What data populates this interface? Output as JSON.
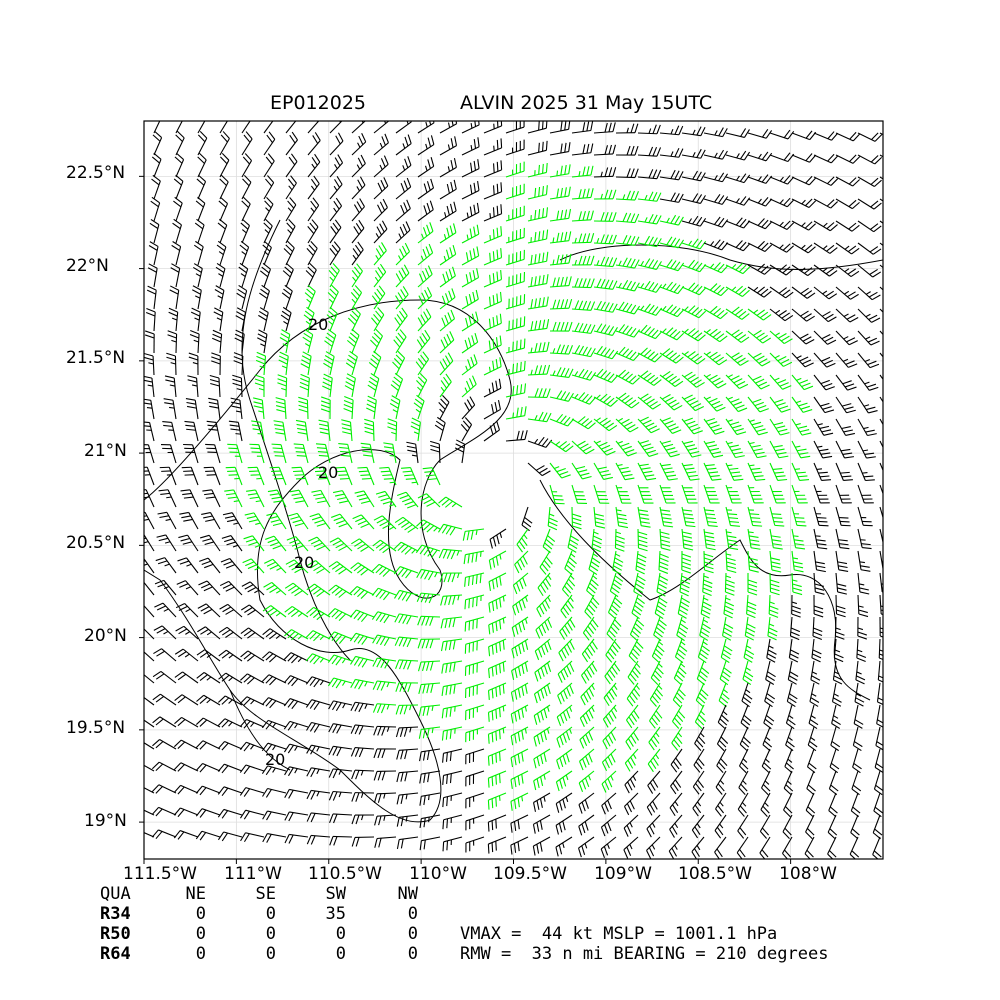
{
  "title": {
    "storm_id": "EP012025",
    "storm_time": "ALVIN 2025 31 May 15UTC"
  },
  "map": {
    "lon_range": [
      -111.5,
      -107.5
    ],
    "lat_range": [
      18.8,
      22.8
    ],
    "center": {
      "lon": -109.6,
      "lat": 20.85
    },
    "lat_ticks": [
      "22.5°N",
      "22°N",
      "21.5°N",
      "21°N",
      "20.5°N",
      "20°N",
      "19.5°N",
      "19°N"
    ],
    "lon_ticks": [
      "111.5°W",
      "111°W",
      "110.5°W",
      "110°W",
      "109.5°W",
      "109°W",
      "108.5°W",
      "108°W"
    ],
    "contour_labels": [
      "20",
      "20",
      "20",
      "20"
    ],
    "colors": {
      "barb_low": "#000000",
      "barb_34kt": "#00ee00",
      "barb_50kt": "#ffaa00",
      "coast": "#000000",
      "grid": "#dddddd"
    }
  },
  "table": {
    "header": [
      "QUA",
      "NE",
      "SE",
      "SW",
      "NW"
    ],
    "rows": [
      {
        "label": "R34",
        "values": [
          "0",
          "0",
          "35",
          "0"
        ]
      },
      {
        "label": "R50",
        "values": [
          "0",
          "0",
          "0",
          "0"
        ]
      },
      {
        "label": "R64",
        "values": [
          "0",
          "0",
          "0",
          "0"
        ]
      }
    ]
  },
  "summary": {
    "line1": "VMAX =  44 kt MSLP = 1001.1 hPa",
    "line2": "RMW =  33 n mi BEARING = 210 degrees"
  }
}
